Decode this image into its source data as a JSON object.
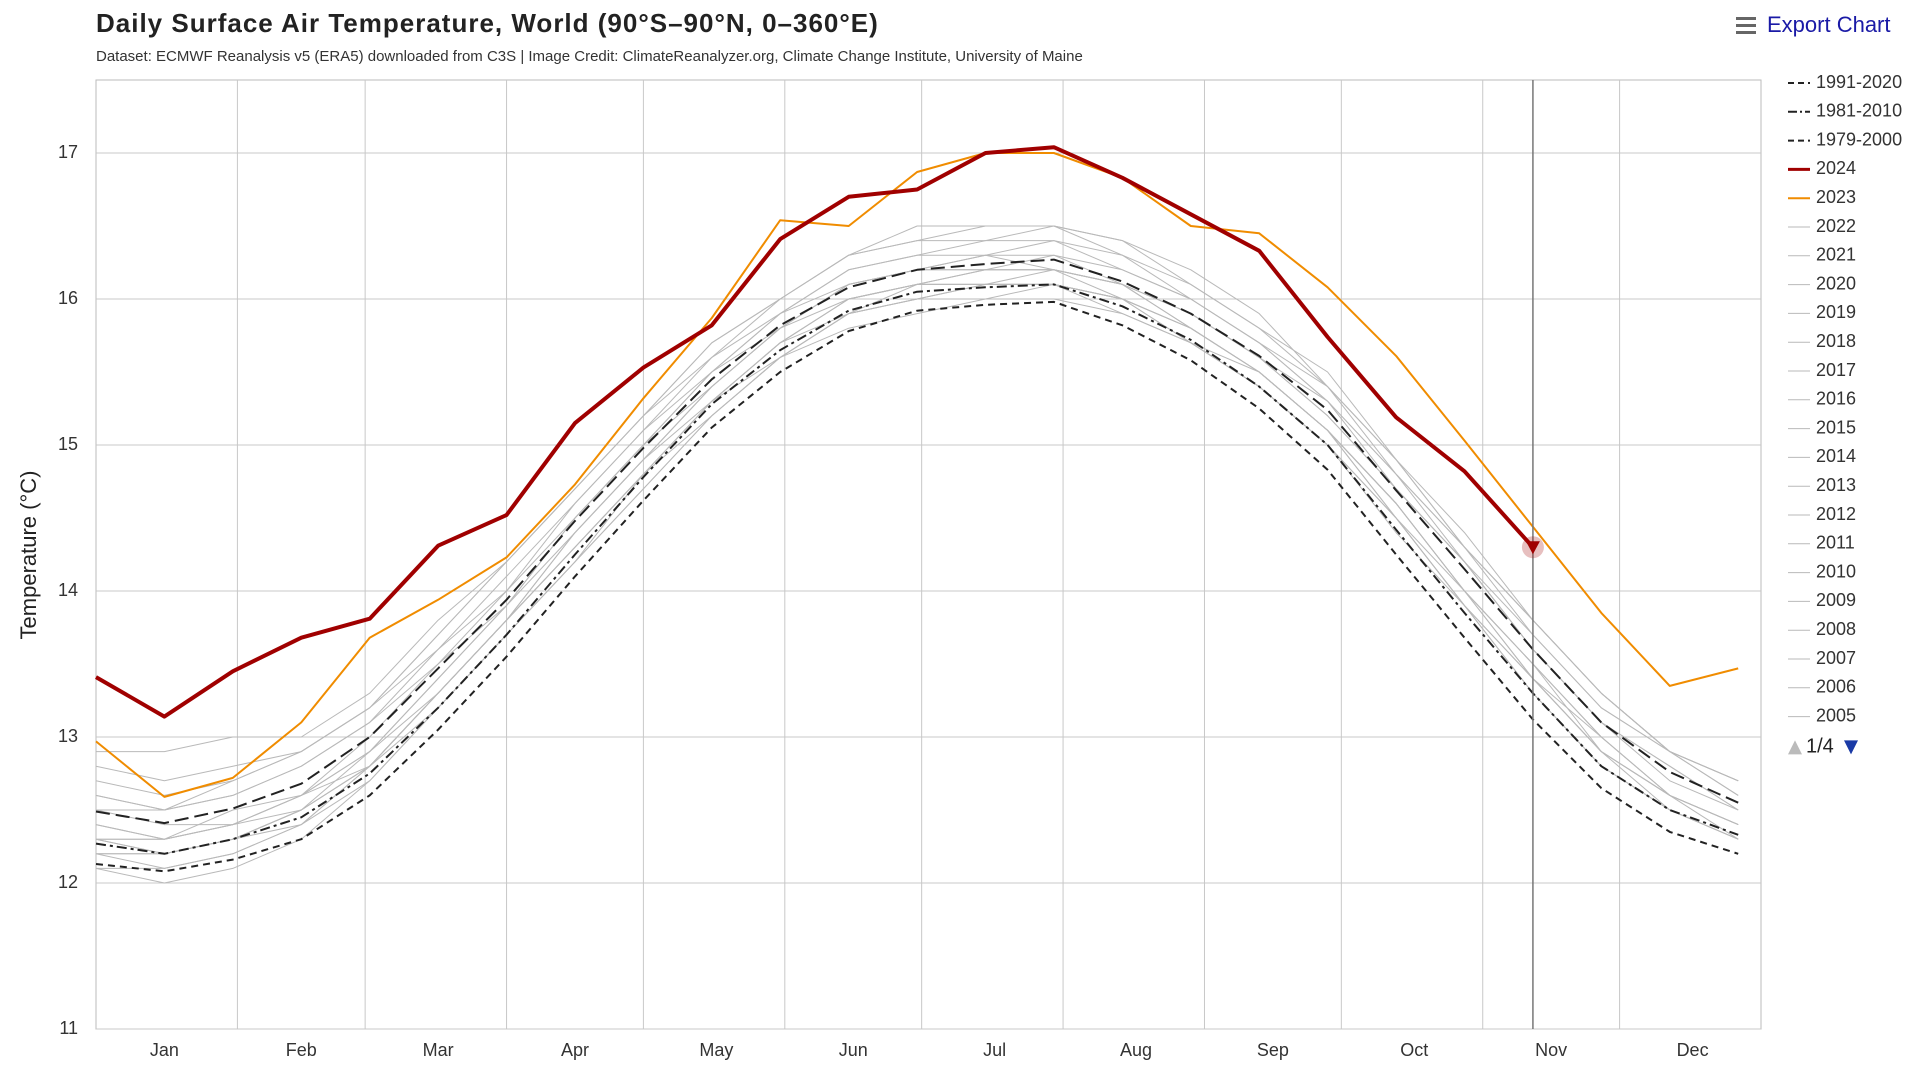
{
  "chart_data": {
    "type": "line",
    "title": "Daily Surface Air Temperature, World (90°S–90°N, 0–360°E)",
    "subtitle": "Dataset: ECMWF Reanalysis v5 (ERA5) downloaded from C3S | Image Credit: ClimateReanalyzer.org, Climate Change Institute, University of Maine",
    "y_label": "Temperature (°C)",
    "menu": "Export Chart",
    "legend_page": "1/4",
    "grid": true,
    "xlim": [
      1,
      366
    ],
    "ylim": [
      11,
      17.5
    ],
    "yticks": [
      11,
      12,
      13,
      14,
      15,
      16,
      17
    ],
    "xticks": [
      {
        "value": 16,
        "label": "Jan"
      },
      {
        "value": 46,
        "label": "Feb"
      },
      {
        "value": 76,
        "label": "Mar"
      },
      {
        "value": 106,
        "label": "Apr"
      },
      {
        "value": 137,
        "label": "May"
      },
      {
        "value": 167,
        "label": "Jun"
      },
      {
        "value": 198,
        "label": "Jul"
      },
      {
        "value": 229,
        "label": "Aug"
      },
      {
        "value": 259,
        "label": "Sep"
      },
      {
        "value": 290,
        "label": "Oct"
      },
      {
        "value": 320,
        "label": "Nov"
      },
      {
        "value": 351,
        "label": "Dec"
      }
    ],
    "xgrid": [
      32,
      60,
      91,
      121,
      152,
      182,
      213,
      244,
      274,
      305,
      335
    ],
    "x": [
      1,
      16,
      31,
      46,
      61,
      76,
      91,
      106,
      121,
      136,
      151,
      166,
      181,
      196,
      211,
      226,
      241,
      256,
      271,
      286,
      301,
      316,
      331,
      346,
      361
    ],
    "series": [
      {
        "name": "1991-2020",
        "color": "#222222",
        "width": 2,
        "dash": "long-dash",
        "values": [
          12.49,
          12.41,
          12.51,
          12.68,
          13.0,
          13.47,
          13.94,
          14.48,
          14.98,
          15.45,
          15.82,
          16.08,
          16.2,
          16.24,
          16.27,
          16.12,
          15.9,
          15.61,
          15.24,
          14.69,
          14.15,
          13.6,
          13.1,
          12.76,
          12.55
        ]
      },
      {
        "name": "1981-2010",
        "color": "#222222",
        "width": 2,
        "dash": "dash-dot",
        "values": [
          12.27,
          12.2,
          12.3,
          12.45,
          12.75,
          13.2,
          13.7,
          14.25,
          14.78,
          15.28,
          15.65,
          15.92,
          16.05,
          16.08,
          16.1,
          15.95,
          15.72,
          15.4,
          15.0,
          14.42,
          13.85,
          13.3,
          12.8,
          12.5,
          12.33
        ]
      },
      {
        "name": "1979-2000",
        "color": "#222222",
        "width": 2,
        "dash": "dash",
        "values": [
          12.13,
          12.08,
          12.16,
          12.3,
          12.6,
          13.05,
          13.55,
          14.1,
          14.62,
          15.12,
          15.5,
          15.78,
          15.92,
          15.96,
          15.98,
          15.82,
          15.58,
          15.25,
          14.83,
          14.25,
          13.68,
          13.12,
          12.65,
          12.35,
          12.2
        ]
      },
      {
        "name": "2024",
        "color": "#a00000",
        "width": 4,
        "dash": "solid",
        "values": [
          13.41,
          13.14,
          13.45,
          13.68,
          13.81,
          14.31,
          14.52,
          15.15,
          15.53,
          15.82,
          16.41,
          16.7,
          16.75,
          17.0,
          17.04,
          16.83,
          16.58,
          16.33,
          15.74,
          15.19,
          14.82,
          14.3,
          null,
          null,
          null
        ]
      },
      {
        "name": "2023",
        "color": "#f08c00",
        "width": 2,
        "dash": "solid",
        "values": [
          12.97,
          12.59,
          12.72,
          13.1,
          13.68,
          13.94,
          14.23,
          14.73,
          15.32,
          15.87,
          16.54,
          16.5,
          16.87,
          17.0,
          17.0,
          16.83,
          16.5,
          16.45,
          16.08,
          15.61,
          15.03,
          14.44,
          13.85,
          13.35,
          13.47
        ]
      },
      {
        "name": "2022",
        "color": "#b9b9b9",
        "width": 1,
        "dash": "solid",
        "values": [
          12.6,
          12.5,
          12.6,
          12.8,
          13.1,
          13.6,
          14.0,
          14.6,
          15.1,
          15.5,
          15.9,
          16.2,
          16.3,
          16.3,
          16.4,
          16.2,
          16.0,
          15.7,
          15.3,
          14.8,
          14.3,
          13.7,
          13.2,
          12.9,
          12.6
        ]
      },
      {
        "name": "2021",
        "color": "#b9b9b9",
        "width": 1,
        "dash": "solid",
        "values": [
          12.5,
          12.4,
          12.4,
          12.6,
          13.0,
          13.5,
          13.9,
          14.5,
          15.0,
          15.4,
          15.8,
          16.1,
          16.2,
          16.3,
          16.2,
          16.1,
          15.9,
          15.6,
          15.3,
          14.7,
          14.2,
          13.6,
          13.1,
          12.8,
          12.5
        ]
      },
      {
        "name": "2020",
        "color": "#b9b9b9",
        "width": 1,
        "dash": "solid",
        "values": [
          12.8,
          12.7,
          12.8,
          12.9,
          13.2,
          13.7,
          14.2,
          14.7,
          15.2,
          15.6,
          16.0,
          16.3,
          16.4,
          16.4,
          16.5,
          16.4,
          16.1,
          15.8,
          15.5,
          14.9,
          14.3,
          13.8,
          13.3,
          12.9,
          12.7
        ]
      },
      {
        "name": "2019",
        "color": "#b9b9b9",
        "width": 1,
        "dash": "solid",
        "values": [
          12.6,
          12.5,
          12.7,
          12.9,
          13.2,
          13.7,
          14.2,
          14.7,
          15.2,
          15.7,
          16.0,
          16.3,
          16.4,
          16.5,
          16.5,
          16.3,
          16.1,
          15.8,
          15.4,
          14.9,
          14.4,
          13.8,
          13.3,
          12.9,
          12.7
        ]
      },
      {
        "name": "2018",
        "color": "#b9b9b9",
        "width": 1,
        "dash": "solid",
        "values": [
          12.4,
          12.3,
          12.5,
          12.6,
          12.9,
          13.4,
          13.9,
          14.4,
          14.9,
          15.4,
          15.8,
          16.1,
          16.2,
          16.2,
          16.3,
          16.1,
          15.9,
          15.6,
          15.2,
          14.7,
          14.2,
          13.6,
          13.1,
          12.7,
          12.5
        ]
      },
      {
        "name": "2017",
        "color": "#b9b9b9",
        "width": 1,
        "dash": "solid",
        "values": [
          12.7,
          12.6,
          12.7,
          12.9,
          13.2,
          13.6,
          14.1,
          14.6,
          15.1,
          15.6,
          15.9,
          16.2,
          16.3,
          16.4,
          16.4,
          16.3,
          16.0,
          15.7,
          15.4,
          14.8,
          14.2,
          13.7,
          13.2,
          12.9,
          12.7
        ]
      },
      {
        "name": "2016",
        "color": "#b9b9b9",
        "width": 1,
        "dash": "solid",
        "values": [
          12.9,
          12.9,
          13.0,
          13.0,
          13.3,
          13.8,
          14.2,
          14.7,
          15.2,
          15.7,
          16.0,
          16.3,
          16.5,
          16.5,
          16.5,
          16.4,
          16.2,
          15.9,
          15.4,
          14.9,
          14.3,
          13.8,
          13.3,
          12.9,
          12.6
        ]
      },
      {
        "name": "2015",
        "color": "#b9b9b9",
        "width": 1,
        "dash": "solid",
        "values": [
          12.3,
          12.3,
          12.4,
          12.6,
          12.9,
          13.4,
          13.9,
          14.5,
          15.0,
          15.5,
          15.9,
          16.1,
          16.2,
          16.3,
          16.3,
          16.2,
          16.0,
          15.7,
          15.3,
          14.8,
          14.3,
          13.8,
          13.3,
          12.9,
          12.7
        ]
      },
      {
        "name": "2014",
        "color": "#b9b9b9",
        "width": 1,
        "dash": "solid",
        "values": [
          12.3,
          12.2,
          12.3,
          12.5,
          12.9,
          13.3,
          13.8,
          14.4,
          14.9,
          15.4,
          15.8,
          16.0,
          16.1,
          16.2,
          16.2,
          16.1,
          15.8,
          15.5,
          15.1,
          14.6,
          14.0,
          13.5,
          13.0,
          12.6,
          12.4
        ]
      },
      {
        "name": "2013",
        "color": "#b9b9b9",
        "width": 1,
        "dash": "solid",
        "values": [
          12.3,
          12.3,
          12.4,
          12.6,
          12.8,
          13.3,
          13.8,
          14.3,
          14.8,
          15.3,
          15.7,
          16.0,
          16.1,
          16.1,
          16.1,
          16.0,
          15.8,
          15.5,
          15.1,
          14.6,
          14.0,
          13.4,
          13.0,
          12.6,
          12.4
        ]
      },
      {
        "name": "2012",
        "color": "#b9b9b9",
        "width": 1,
        "dash": "solid",
        "values": [
          12.2,
          12.2,
          12.3,
          12.4,
          12.8,
          13.3,
          13.8,
          14.3,
          14.8,
          15.3,
          15.7,
          15.9,
          16.1,
          16.1,
          16.1,
          16.0,
          15.7,
          15.5,
          15.1,
          14.5,
          13.9,
          13.4,
          12.9,
          12.6,
          12.4
        ]
      },
      {
        "name": "2011",
        "color": "#b9b9b9",
        "width": 1,
        "dash": "solid",
        "values": [
          12.2,
          12.1,
          12.2,
          12.4,
          12.7,
          13.2,
          13.7,
          14.2,
          14.8,
          15.2,
          15.6,
          15.9,
          16.0,
          16.0,
          16.1,
          15.9,
          15.7,
          15.4,
          15.0,
          14.5,
          13.9,
          13.4,
          12.9,
          12.5,
          12.3
        ]
      },
      {
        "name": "2010",
        "color": "#b9b9b9",
        "width": 1,
        "dash": "solid",
        "values": [
          12.5,
          12.5,
          12.6,
          12.8,
          13.1,
          13.5,
          14.0,
          14.5,
          15.0,
          15.5,
          15.8,
          16.1,
          16.2,
          16.2,
          16.2,
          16.1,
          15.8,
          15.5,
          15.1,
          14.6,
          14.0,
          13.5,
          12.9,
          12.6,
          12.3
        ]
      },
      {
        "name": "2009",
        "color": "#b9b9b9",
        "width": 1,
        "dash": "solid",
        "values": [
          12.3,
          12.2,
          12.3,
          12.5,
          12.8,
          13.3,
          13.8,
          14.4,
          14.9,
          15.3,
          15.7,
          16.0,
          16.1,
          16.2,
          16.2,
          16.1,
          15.9,
          15.6,
          15.2,
          14.7,
          14.2,
          13.6,
          13.1,
          12.8,
          12.5
        ]
      },
      {
        "name": "2008",
        "color": "#b9b9b9",
        "width": 1,
        "dash": "solid",
        "values": [
          12.1,
          12.0,
          12.1,
          12.3,
          12.7,
          13.2,
          13.7,
          14.2,
          14.7,
          15.2,
          15.6,
          15.8,
          15.9,
          16.0,
          16.0,
          15.9,
          15.7,
          15.4,
          15.0,
          14.4,
          13.9,
          13.3,
          12.8,
          12.5,
          12.3
        ]
      },
      {
        "name": "2007",
        "color": "#b9b9b9",
        "width": 1,
        "dash": "solid",
        "values": [
          12.4,
          12.3,
          12.4,
          12.5,
          12.8,
          13.3,
          13.8,
          14.3,
          14.8,
          15.3,
          15.6,
          15.9,
          16.0,
          16.1,
          16.1,
          16.0,
          15.7,
          15.4,
          15.0,
          14.5,
          13.9,
          13.3,
          12.8,
          12.5,
          12.3
        ]
      },
      {
        "name": "2006",
        "color": "#b9b9b9",
        "width": 1,
        "dash": "solid",
        "values": [
          12.1,
          12.1,
          12.2,
          12.4,
          12.8,
          13.2,
          13.7,
          14.2,
          14.7,
          15.2,
          15.6,
          15.9,
          16.0,
          16.1,
          16.1,
          16.0,
          15.8,
          15.5,
          15.1,
          14.5,
          14.0,
          13.4,
          12.9,
          12.6,
          12.4
        ]
      },
      {
        "name": "2005",
        "color": "#b9b9b9",
        "width": 1,
        "dash": "solid",
        "values": [
          12.2,
          12.2,
          12.3,
          12.5,
          12.8,
          13.3,
          13.8,
          14.3,
          14.8,
          15.3,
          15.7,
          16.0,
          16.1,
          16.1,
          16.2,
          16.0,
          15.8,
          15.5,
          15.1,
          14.6,
          14.0,
          13.5,
          13.0,
          12.6,
          12.4
        ]
      }
    ]
  }
}
